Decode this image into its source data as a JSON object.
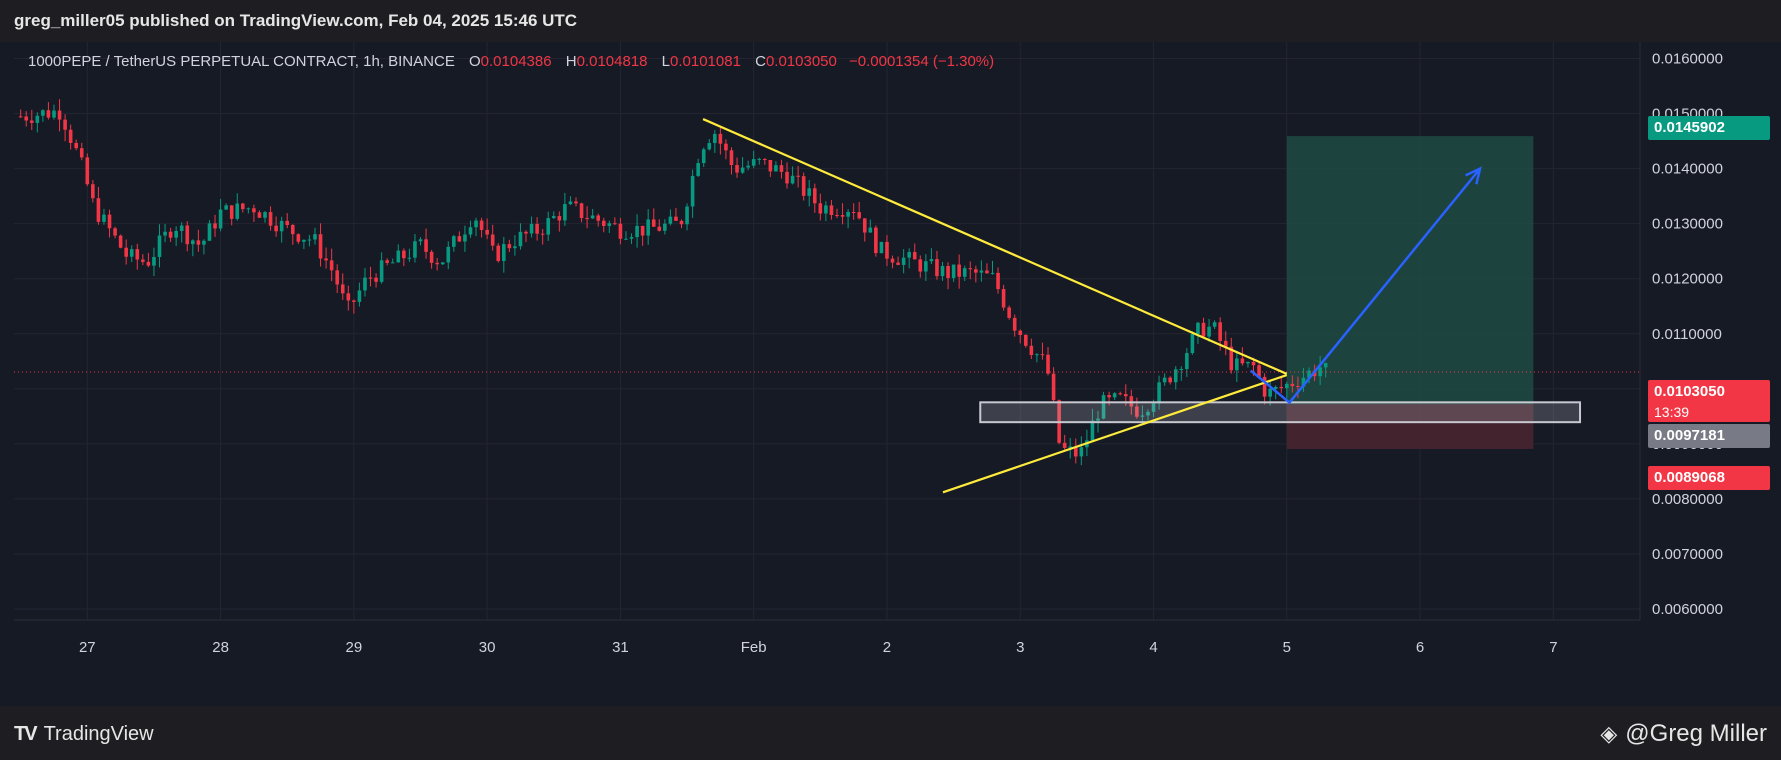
{
  "header": {
    "published": "greg_miller05 published on TradingView.com, Feb 04, 2025 15:46 UTC"
  },
  "legend": {
    "symbol": "1000PEPE / TetherUS PERPETUAL CONTRACT, 1h, BINANCE",
    "o_label": "O",
    "o_value": "0.0104386",
    "h_label": "H",
    "h_value": "0.0104818",
    "l_label": "L",
    "l_value": "0.0101081",
    "c_label": "C",
    "c_value": "0.0103050",
    "change": "−0.0001354 (−1.30%)"
  },
  "price_tags": {
    "target": "0.0145902",
    "last": "0.0103050",
    "countdown": "13:39",
    "entry": "0.0097181",
    "stop": "0.0089068"
  },
  "footer": {
    "brand": "TradingView",
    "author": "@Greg Miller"
  },
  "colors": {
    "background": "#161a25",
    "up": "#089981",
    "down": "#f23645",
    "trendline": "#ffeb3b",
    "arrow": "#2962ff",
    "target_zone": "#1f4d45",
    "stop_zone": "#4a2630",
    "zone_box": "#c8c8d0"
  },
  "chart_data": {
    "type": "candlestick",
    "timeframe": "1h",
    "y_ticks": [
      "0.0160000",
      "0.0150000",
      "0.0140000",
      "0.0130000",
      "0.0120000",
      "0.0110000",
      "0.0100000",
      "0.0090000",
      "0.0080000",
      "0.0070000",
      "0.0060000"
    ],
    "ylim": [
      0.0058,
      0.0163
    ],
    "x_ticks": [
      "27",
      "28",
      "29",
      "30",
      "31",
      "Feb",
      "2",
      "3",
      "4",
      "5",
      "6",
      "7"
    ],
    "x_tick_days": [
      27,
      28,
      29,
      30,
      31,
      32,
      33,
      34,
      35,
      36,
      37,
      38
    ],
    "xlim_days": [
      26.45,
      38.65
    ],
    "price_path": [
      [
        26.5,
        0.01495
      ],
      [
        26.8,
        0.01505
      ],
      [
        26.95,
        0.0141
      ],
      [
        27.05,
        0.0133
      ],
      [
        27.3,
        0.0124
      ],
      [
        27.45,
        0.0123
      ],
      [
        27.65,
        0.013
      ],
      [
        27.85,
        0.0126
      ],
      [
        28.0,
        0.0132
      ],
      [
        28.25,
        0.0133
      ],
      [
        28.5,
        0.0129
      ],
      [
        28.7,
        0.0127
      ],
      [
        28.85,
        0.0121
      ],
      [
        28.95,
        0.0114
      ],
      [
        29.1,
        0.012
      ],
      [
        29.3,
        0.0123
      ],
      [
        29.5,
        0.0126
      ],
      [
        29.65,
        0.0123
      ],
      [
        29.8,
        0.0128
      ],
      [
        29.9,
        0.0132
      ],
      [
        30.05,
        0.0124
      ],
      [
        30.2,
        0.0127
      ],
      [
        30.4,
        0.0129
      ],
      [
        30.6,
        0.0133
      ],
      [
        30.8,
        0.0131
      ],
      [
        31.0,
        0.0129
      ],
      [
        31.2,
        0.0129
      ],
      [
        31.45,
        0.013
      ],
      [
        31.6,
        0.0144
      ],
      [
        31.7,
        0.0147
      ],
      [
        31.85,
        0.014
      ],
      [
        32.05,
        0.0141
      ],
      [
        32.25,
        0.0139
      ],
      [
        32.5,
        0.0133
      ],
      [
        32.75,
        0.0133
      ],
      [
        32.95,
        0.0125
      ],
      [
        33.2,
        0.0123
      ],
      [
        33.45,
        0.0121
      ],
      [
        33.65,
        0.0121
      ],
      [
        33.8,
        0.012
      ],
      [
        33.95,
        0.0112
      ],
      [
        34.1,
        0.0107
      ],
      [
        34.2,
        0.0104
      ],
      [
        34.3,
        0.0089
      ],
      [
        34.45,
        0.0088
      ],
      [
        34.6,
        0.0097
      ],
      [
        34.75,
        0.0098
      ],
      [
        34.9,
        0.0096
      ],
      [
        35.05,
        0.01
      ],
      [
        35.2,
        0.0105
      ],
      [
        35.35,
        0.0111
      ],
      [
        35.45,
        0.0111
      ],
      [
        35.6,
        0.0104
      ],
      [
        35.75,
        0.0104
      ],
      [
        35.85,
        0.0099
      ],
      [
        35.95,
        0.01
      ],
      [
        36.1,
        0.0102
      ],
      [
        36.25,
        0.0104
      ],
      [
        36.3,
        0.0103
      ]
    ],
    "trendlines": [
      {
        "name": "upper",
        "from": {
          "day": 31.62,
          "price": 0.0149
        },
        "to": {
          "day": 36.0,
          "price": 0.01027
        }
      },
      {
        "name": "lower",
        "from": {
          "day": 33.42,
          "price": 0.00812
        },
        "to": {
          "day": 36.0,
          "price": 0.01025
        }
      }
    ],
    "projection": [
      {
        "day": 35.73,
        "price": 0.01033
      },
      {
        "day": 36.02,
        "price": 0.00975
      },
      {
        "day": 37.45,
        "price": 0.014
      }
    ],
    "position": {
      "entry": 0.0097181,
      "target": 0.0145902,
      "stop": 0.0089068,
      "from_day": 36.0,
      "to_day": 37.85
    },
    "zone": {
      "top": 0.0097181,
      "bottom": 0.00943,
      "from_day": 33.7,
      "to_day": 38.2
    },
    "last_price": 0.010305
  }
}
